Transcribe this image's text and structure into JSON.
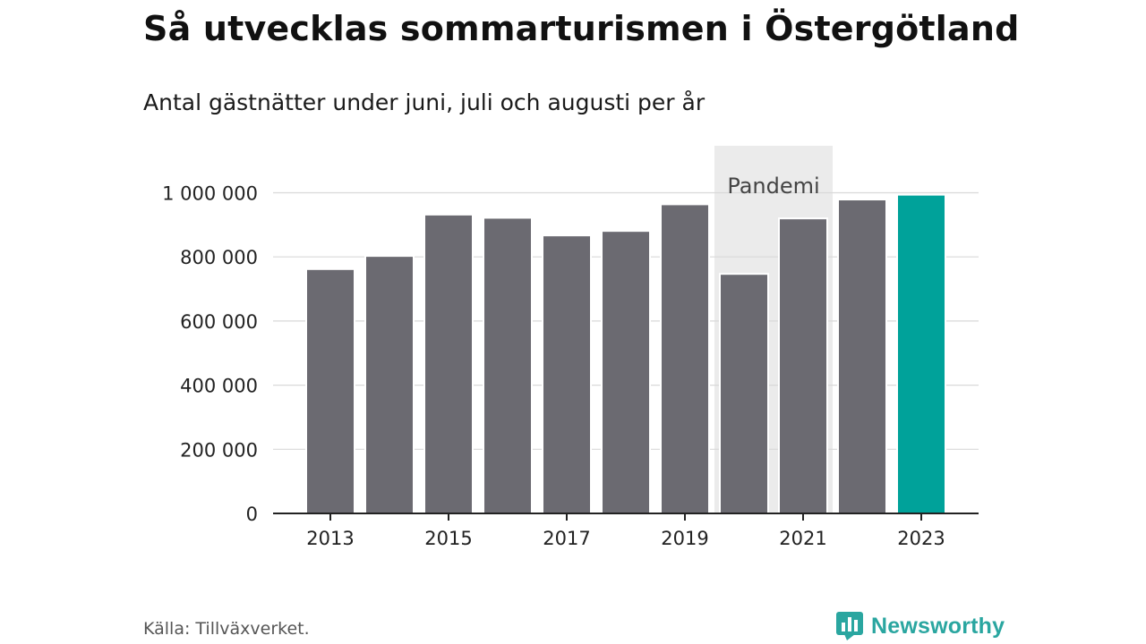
{
  "header": {
    "title": "Så utvecklas sommarturismen i Östergötland",
    "subtitle": "Antal gästnätter under juni, juli och augusti per år"
  },
  "footer": {
    "source": "Källa: Tillväxverket.",
    "brand": "Newsworthy"
  },
  "colors": {
    "bar": "#6b6a71",
    "highlight": "#00a29a",
    "band": "#ebebeb",
    "grid": "#d9d9d9",
    "axis": "#222222",
    "brand": "#2aa6a0"
  },
  "chart_data": {
    "type": "bar",
    "title": "Så utvecklas sommarturismen i Östergötland",
    "subtitle": "Antal gästnätter under juni, juli och augusti per år",
    "categories": [
      2013,
      2014,
      2015,
      2016,
      2017,
      2018,
      2019,
      2020,
      2021,
      2022,
      2023
    ],
    "values": [
      762000,
      803000,
      932000,
      922000,
      867000,
      881000,
      964000,
      747000,
      920000,
      979000,
      994000
    ],
    "highlight_category": 2023,
    "xlabel": "",
    "ylabel": "",
    "ylim": [
      0,
      1000000
    ],
    "yticks": [
      0,
      200000,
      400000,
      600000,
      800000,
      1000000
    ],
    "ytick_labels": [
      "0",
      "200 000",
      "400 000",
      "600 000",
      "800 000",
      "1 000 000"
    ],
    "xtick_labels": [
      "2013",
      "2015",
      "2017",
      "2019",
      "2021",
      "2023"
    ],
    "grid": true,
    "legend": "none",
    "annotations": [
      {
        "label": "Pandemi",
        "from": 2020,
        "to": 2021,
        "type": "shaded-band"
      }
    ]
  }
}
